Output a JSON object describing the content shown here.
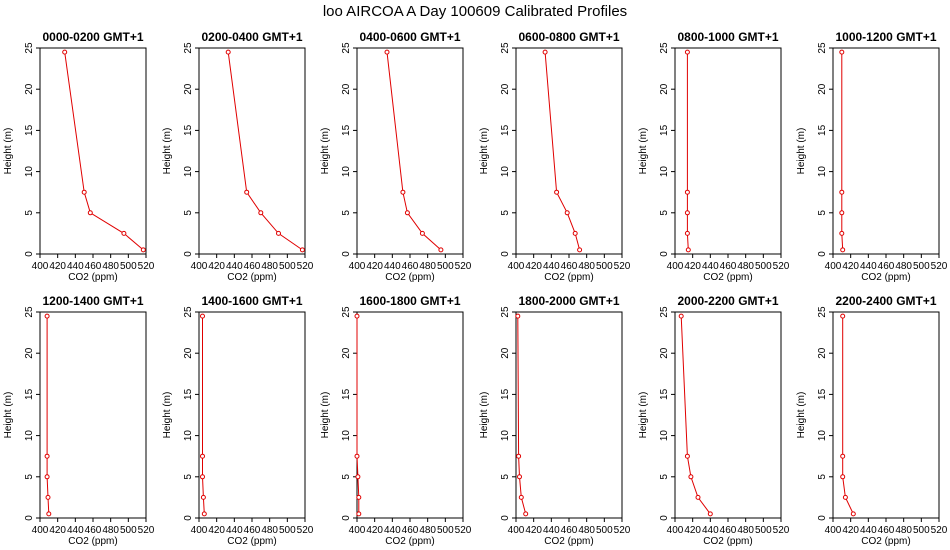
{
  "figure": {
    "title": "loo AIRCOA A  Day 100609  Calibrated Profiles"
  },
  "colors": {
    "series": "#e00000",
    "axis": "#000000",
    "background": "#ffffff"
  },
  "chart_data": [
    {
      "type": "line",
      "title": "0000-0200 GMT+1",
      "xlabel": "CO2 (ppm)",
      "ylabel": "Height (m)",
      "xlim": [
        400,
        520
      ],
      "ylim": [
        0,
        25
      ],
      "x_ticks": [
        400,
        420,
        440,
        460,
        480,
        500,
        520
      ],
      "y_ticks": [
        0,
        5,
        10,
        15,
        20,
        25
      ],
      "grid": false,
      "series": [
        {
          "x": [
            517,
            495,
            457,
            450,
            428
          ],
          "y": [
            0.5,
            2.5,
            5,
            7.5,
            24.5
          ]
        }
      ]
    },
    {
      "type": "line",
      "title": "0200-0400 GMT+1",
      "xlabel": "CO2 (ppm)",
      "ylabel": "Height (m)",
      "xlim": [
        400,
        520
      ],
      "ylim": [
        0,
        25
      ],
      "x_ticks": [
        400,
        420,
        440,
        460,
        480,
        500,
        520
      ],
      "y_ticks": [
        0,
        5,
        10,
        15,
        20,
        25
      ],
      "grid": false,
      "series": [
        {
          "x": [
            517,
            490,
            470,
            454,
            433
          ],
          "y": [
            0.5,
            2.5,
            5,
            7.5,
            24.5
          ]
        }
      ]
    },
    {
      "type": "line",
      "title": "0400-0600 GMT+1",
      "xlabel": "CO2 (ppm)",
      "ylabel": "Height (m)",
      "xlim": [
        400,
        520
      ],
      "ylim": [
        0,
        25
      ],
      "x_ticks": [
        400,
        420,
        440,
        460,
        480,
        500,
        520
      ],
      "y_ticks": [
        0,
        5,
        10,
        15,
        20,
        25
      ],
      "grid": false,
      "series": [
        {
          "x": [
            495,
            474,
            457,
            452,
            434
          ],
          "y": [
            0.5,
            2.5,
            5,
            7.5,
            24.5
          ]
        }
      ]
    },
    {
      "type": "line",
      "title": "0600-0800 GMT+1",
      "xlabel": "CO2 (ppm)",
      "ylabel": "Height (m)",
      "xlim": [
        400,
        520
      ],
      "ylim": [
        0,
        25
      ],
      "x_ticks": [
        400,
        420,
        440,
        460,
        480,
        500,
        520
      ],
      "y_ticks": [
        0,
        5,
        10,
        15,
        20,
        25
      ],
      "grid": false,
      "series": [
        {
          "x": [
            472,
            467,
            458,
            446,
            433
          ],
          "y": [
            0.5,
            2.5,
            5,
            7.5,
            24.5
          ]
        }
      ]
    },
    {
      "type": "line",
      "title": "0800-1000 GMT+1",
      "xlabel": "CO2 (ppm)",
      "ylabel": "Height (m)",
      "xlim": [
        400,
        520
      ],
      "ylim": [
        0,
        25
      ],
      "x_ticks": [
        400,
        420,
        440,
        460,
        480,
        500,
        520
      ],
      "y_ticks": [
        0,
        5,
        10,
        15,
        20,
        25
      ],
      "grid": false,
      "series": [
        {
          "x": [
            415,
            414,
            414,
            414,
            414
          ],
          "y": [
            0.5,
            2.5,
            5,
            7.5,
            24.5
          ]
        }
      ]
    },
    {
      "type": "line",
      "title": "1000-1200 GMT+1",
      "xlabel": "CO2 (ppm)",
      "ylabel": "Height (m)",
      "xlim": [
        400,
        520
      ],
      "ylim": [
        0,
        25
      ],
      "x_ticks": [
        400,
        420,
        440,
        460,
        480,
        500,
        520
      ],
      "y_ticks": [
        0,
        5,
        10,
        15,
        20,
        25
      ],
      "grid": false,
      "series": [
        {
          "x": [
            411,
            410,
            410,
            410,
            410
          ],
          "y": [
            0.5,
            2.5,
            5,
            7.5,
            24.5
          ]
        }
      ]
    },
    {
      "type": "line",
      "title": "1200-1400 GMT+1",
      "xlabel": "CO2 (ppm)",
      "ylabel": "Height (m)",
      "xlim": [
        400,
        520
      ],
      "ylim": [
        0,
        25
      ],
      "x_ticks": [
        400,
        420,
        440,
        460,
        480,
        500,
        520
      ],
      "y_ticks": [
        0,
        5,
        10,
        15,
        20,
        25
      ],
      "grid": false,
      "series": [
        {
          "x": [
            410,
            409,
            408,
            408,
            408
          ],
          "y": [
            0.5,
            2.5,
            5,
            7.5,
            24.5
          ]
        }
      ]
    },
    {
      "type": "line",
      "title": "1400-1600 GMT+1",
      "xlabel": "CO2 (ppm)",
      "ylabel": "Height (m)",
      "xlim": [
        400,
        520
      ],
      "ylim": [
        0,
        25
      ],
      "x_ticks": [
        400,
        420,
        440,
        460,
        480,
        500,
        520
      ],
      "y_ticks": [
        0,
        5,
        10,
        15,
        20,
        25
      ],
      "grid": false,
      "series": [
        {
          "x": [
            406,
            405,
            404,
            404,
            404
          ],
          "y": [
            0.5,
            2.5,
            5,
            7.5,
            24.5
          ]
        }
      ]
    },
    {
      "type": "line",
      "title": "1600-1800 GMT+1",
      "xlabel": "CO2 (ppm)",
      "ylabel": "Height (m)",
      "xlim": [
        400,
        520
      ],
      "ylim": [
        0,
        25
      ],
      "x_ticks": [
        400,
        420,
        440,
        460,
        480,
        500,
        520
      ],
      "y_ticks": [
        0,
        5,
        10,
        15,
        20,
        25
      ],
      "grid": false,
      "series": [
        {
          "x": [
            402,
            402,
            401,
            400,
            400
          ],
          "y": [
            0.5,
            2.5,
            5,
            7.5,
            24.5
          ]
        }
      ]
    },
    {
      "type": "line",
      "title": "1800-2000 GMT+1",
      "xlabel": "CO2 (ppm)",
      "ylabel": "Height (m)",
      "xlim": [
        400,
        520
      ],
      "ylim": [
        0,
        25
      ],
      "x_ticks": [
        400,
        420,
        440,
        460,
        480,
        500,
        520
      ],
      "y_ticks": [
        0,
        5,
        10,
        15,
        20,
        25
      ],
      "grid": false,
      "series": [
        {
          "x": [
            411,
            406,
            404,
            403,
            402
          ],
          "y": [
            0.5,
            2.5,
            5,
            7.5,
            24.5
          ]
        }
      ]
    },
    {
      "type": "line",
      "title": "2000-2200 GMT+1",
      "xlabel": "CO2 (ppm)",
      "ylabel": "Height (m)",
      "xlim": [
        400,
        520
      ],
      "ylim": [
        0,
        25
      ],
      "x_ticks": [
        400,
        420,
        440,
        460,
        480,
        500,
        520
      ],
      "y_ticks": [
        0,
        5,
        10,
        15,
        20,
        25
      ],
      "grid": false,
      "series": [
        {
          "x": [
            440,
            426,
            418,
            414,
            407
          ],
          "y": [
            0.5,
            2.5,
            5,
            7.5,
            24.5
          ]
        }
      ]
    },
    {
      "type": "line",
      "title": "2200-2400 GMT+1",
      "xlabel": "CO2 (ppm)",
      "ylabel": "Height (m)",
      "xlim": [
        400,
        520
      ],
      "ylim": [
        0,
        25
      ],
      "x_ticks": [
        400,
        420,
        440,
        460,
        480,
        500,
        520
      ],
      "y_ticks": [
        0,
        5,
        10,
        15,
        20,
        25
      ],
      "grid": false,
      "series": [
        {
          "x": [
            423,
            414,
            411,
            411,
            411
          ],
          "y": [
            0.5,
            2.5,
            5,
            7.5,
            24.5
          ]
        }
      ]
    }
  ]
}
